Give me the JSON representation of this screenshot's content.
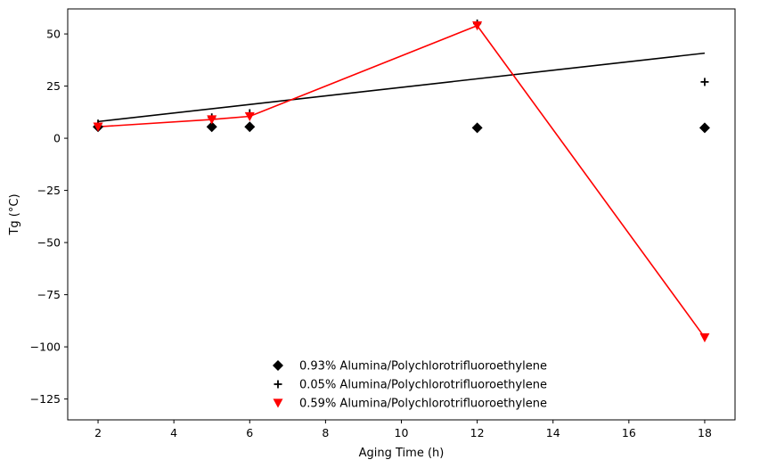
{
  "chart_data": {
    "type": "scatter",
    "title": "",
    "xlabel": "Aging Time (h)",
    "ylabel": "Tg (°C)",
    "xlim": [
      1.2,
      18.8
    ],
    "ylim": [
      -135,
      62
    ],
    "xticks": [
      2,
      4,
      6,
      8,
      10,
      12,
      14,
      16,
      18
    ],
    "yticks": [
      50,
      25,
      0,
      -25,
      -50,
      -75,
      -100,
      -125
    ],
    "legend_position": "lower-center",
    "grid": false,
    "series": [
      {
        "name": "0.93% Alumina/Polychlorotrifluoroethylene",
        "marker": "diamond",
        "color": "#000000",
        "x": [
          2,
          5,
          6,
          12,
          18
        ],
        "y": [
          5.5,
          5.5,
          5.5,
          5.0,
          5.0
        ],
        "fit_line": null
      },
      {
        "name": "0.05% Alumina/Polychlorotrifluoroethylene",
        "marker": "plus",
        "color": "#000000",
        "x": [
          2,
          5,
          6,
          12,
          18
        ],
        "y": [
          7,
          10,
          12,
          55,
          27
        ],
        "fit_line": {
          "x": [
            2,
            18
          ],
          "y": [
            8.0,
            40.8
          ]
        }
      },
      {
        "name": "0.59% Alumina/Polychlorotrifluoroethylene",
        "marker": "triangle-down",
        "color": "#ff0000",
        "x": [
          2,
          5,
          6,
          12,
          18
        ],
        "y": [
          5.5,
          9,
          10.5,
          54,
          -95.5
        ],
        "connect": true
      }
    ]
  }
}
